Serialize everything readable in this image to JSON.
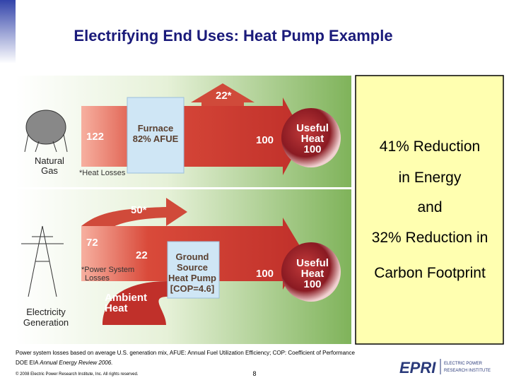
{
  "header": {
    "title": "Electrifying End Uses: Heat Pump Example"
  },
  "diagram": {
    "top": {
      "loss": "22*",
      "input": "122",
      "furnace": [
        "Furnace",
        "82% AFUE"
      ],
      "output": "100",
      "useful": [
        "Useful",
        "Heat",
        "100"
      ],
      "source": [
        "Natural",
        "Gas"
      ],
      "note": "*Heat Losses"
    },
    "bottom": {
      "loss": "50*",
      "input": "72",
      "delivered": "22",
      "heat_pump": [
        "Ground",
        "Source",
        "Heat Pump",
        "[COP=4.6]"
      ],
      "output": "100",
      "useful": [
        "Useful",
        "Heat",
        "100"
      ],
      "note": [
        "*Power System",
        "Losses"
      ],
      "ambient": [
        "Ambient",
        "Heat"
      ],
      "source": [
        "Electricity",
        "Generation"
      ]
    }
  },
  "callout": {
    "lines": [
      "41% Reduction",
      "in Energy",
      "and",
      "32% Reduction in",
      "Carbon Footprint"
    ]
  },
  "footer": {
    "note": "Power system losses based on average U.S. generation mix, AFUE: Annual Fuel Utilization Efficiency; COP: Coefficient of Performance",
    "source_prefix": "DOE EIA",
    "source_title": "Annual Energy Review 2006.",
    "copyright": "© 2008 Electric Power Research Institute, Inc. All rights reserved.",
    "page": "8",
    "logo": "EPRI",
    "logo_lines": [
      "ELECTRIC POWER",
      "RESEARCH INSTITUTE"
    ]
  }
}
